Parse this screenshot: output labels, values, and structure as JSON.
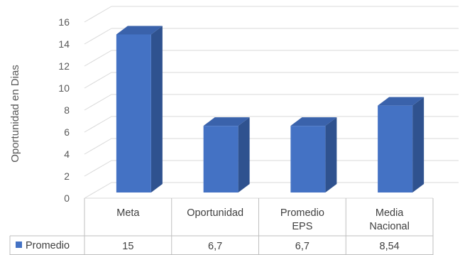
{
  "chart_data": {
    "type": "bar",
    "style": "3d-column-with-data-table",
    "categories": [
      "Meta",
      "Oportunidad",
      "Promedio EPS",
      "Media Nacional"
    ],
    "category_lines": [
      [
        "Meta"
      ],
      [
        "Oportunidad"
      ],
      [
        "Promedio",
        "EPS"
      ],
      [
        "Media",
        "Nacional"
      ]
    ],
    "series": [
      {
        "name": "Promedio",
        "values": [
          15,
          6.7,
          6.7,
          8.54
        ],
        "labels": [
          "15",
          "6,7",
          "6,7",
          "8,54"
        ]
      }
    ],
    "ylabel": "Oportunidad en Dias",
    "ylim": [
      0,
      16
    ],
    "yticks": [
      0,
      2,
      4,
      6,
      8,
      10,
      12,
      14,
      16
    ],
    "grid": true,
    "legend": "data-table-left",
    "colors": {
      "bar_front": "#4472C4",
      "bar_side": "#2F528F",
      "bar_top": "#3A62AB",
      "grid": "#D9D9D9",
      "text": "#595959"
    }
  }
}
